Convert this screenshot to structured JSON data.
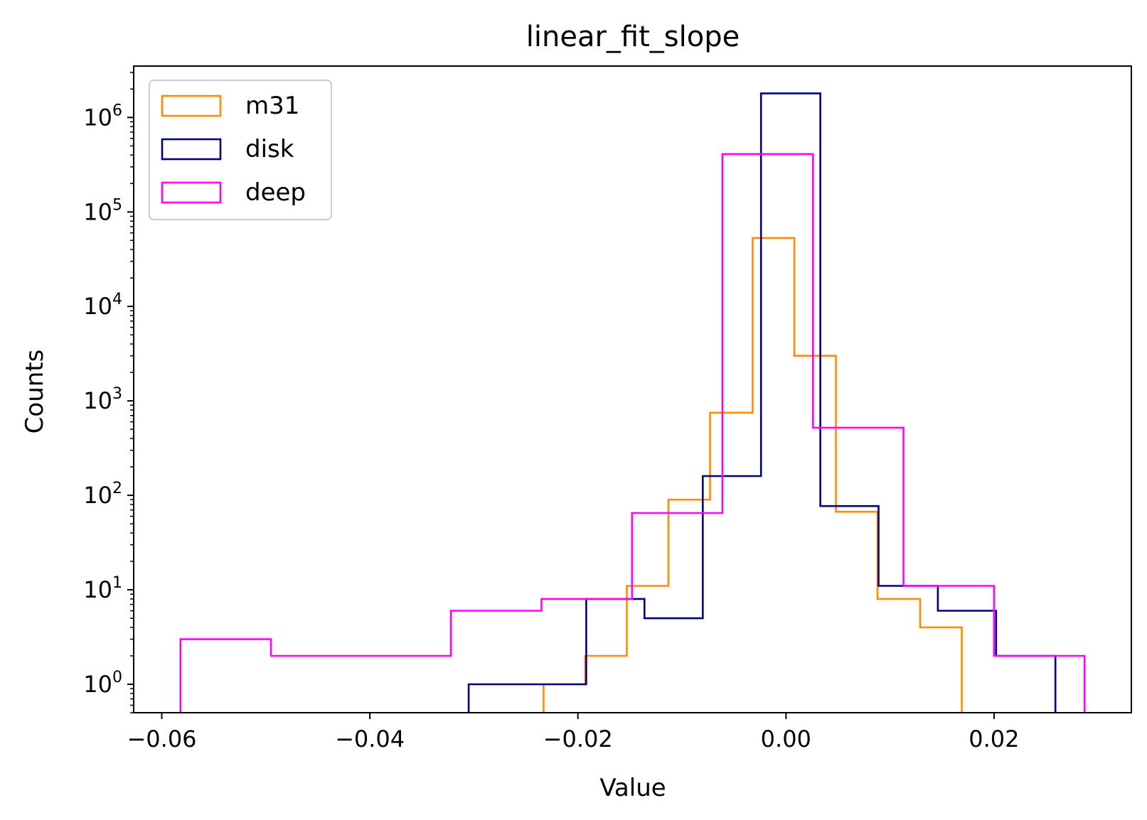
{
  "chart_data": {
    "type": "histogram",
    "title": "linear_fit_slope",
    "xlabel": "Value",
    "ylabel": "Counts",
    "xscale": "linear",
    "yscale": "log",
    "xlim": [
      -0.0627,
      0.0332
    ],
    "ylim": [
      0.5,
      3500000
    ],
    "grid": false,
    "legend_position": "upper left",
    "xticks": [
      {
        "value": -0.06,
        "label": "−0.06"
      },
      {
        "value": -0.04,
        "label": "−0.04"
      },
      {
        "value": -0.02,
        "label": "−0.02"
      },
      {
        "value": 0.0,
        "label": "0.00"
      },
      {
        "value": 0.02,
        "label": "0.02"
      }
    ],
    "yticks": [
      {
        "value": 1,
        "base": "10",
        "exp": "0"
      },
      {
        "value": 10,
        "base": "10",
        "exp": "1"
      },
      {
        "value": 100,
        "base": "10",
        "exp": "2"
      },
      {
        "value": 1000,
        "base": "10",
        "exp": "3"
      },
      {
        "value": 10000,
        "base": "10",
        "exp": "4"
      },
      {
        "value": 100000,
        "base": "10",
        "exp": "5"
      },
      {
        "value": 1000000,
        "base": "10",
        "exp": "6"
      }
    ],
    "series": [
      {
        "name": "m31",
        "color": "#ff8c00",
        "bin_edges": [
          -0.0233,
          -0.0193,
          -0.0153,
          -0.0113,
          -0.0073,
          -0.0032,
          0.0008,
          0.0048,
          0.0088,
          0.0129,
          0.0169
        ],
        "counts": [
          1,
          2,
          11,
          90,
          750,
          53000,
          3000,
          67,
          8,
          4
        ]
      },
      {
        "name": "disk",
        "color": "#000080",
        "bin_edges": [
          -0.0305,
          -0.0192,
          -0.0136,
          -0.008,
          -0.0024,
          0.0033,
          0.0089,
          0.0146,
          0.0202,
          0.0259
        ],
        "counts": [
          1,
          8,
          5,
          160,
          1800000,
          77,
          11,
          6,
          2
        ]
      },
      {
        "name": "deep",
        "color": "#ff00ff",
        "bin_edges": [
          -0.0582,
          -0.0495,
          -0.0408,
          -0.0322,
          -0.0235,
          -0.0148,
          -0.0061,
          0.0026,
          0.0113,
          0.02,
          0.0287
        ],
        "counts": [
          3,
          2,
          2,
          6,
          8,
          65,
          410000,
          520,
          11,
          2
        ]
      }
    ]
  }
}
